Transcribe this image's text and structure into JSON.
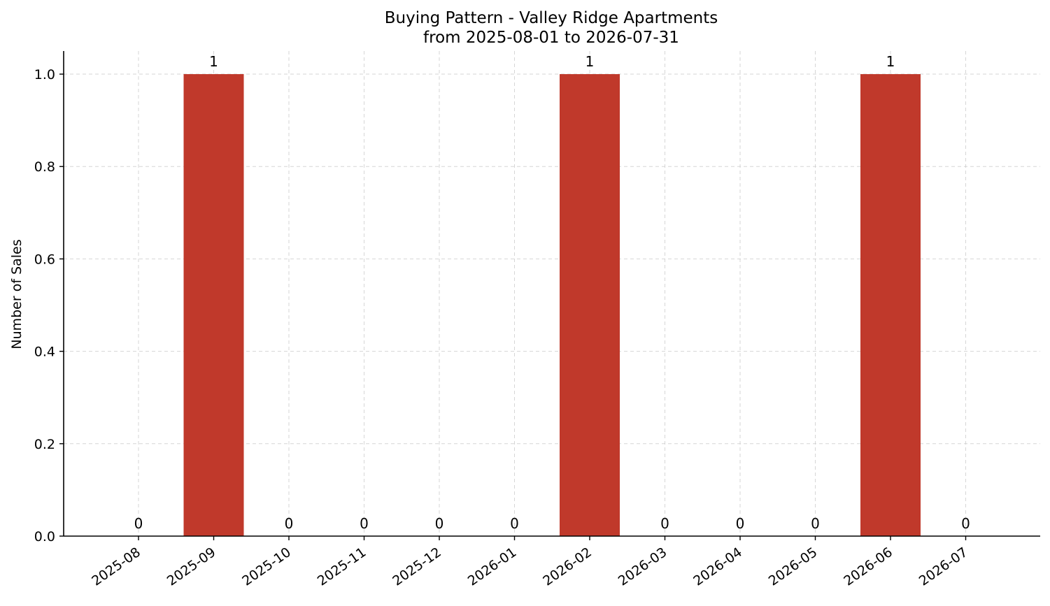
{
  "chart_data": {
    "type": "bar",
    "title": "Buying Pattern - Valley Ridge Apartments",
    "subtitle": "from 2025-08-01 to 2026-07-31",
    "xlabel": "",
    "ylabel": "Number of Sales",
    "categories": [
      "2025-08",
      "2025-09",
      "2025-10",
      "2025-11",
      "2025-12",
      "2026-01",
      "2026-02",
      "2026-03",
      "2026-04",
      "2026-05",
      "2026-06",
      "2026-07"
    ],
    "values": [
      0,
      1,
      0,
      0,
      0,
      0,
      1,
      0,
      0,
      0,
      1,
      0
    ],
    "data_labels": [
      "0",
      "1",
      "0",
      "0",
      "0",
      "0",
      "1",
      "0",
      "0",
      "0",
      "1",
      "0"
    ],
    "ylim": [
      0,
      1.05
    ],
    "yticks": [
      0.0,
      0.2,
      0.4,
      0.6,
      0.8,
      1.0
    ],
    "ytick_labels": [
      "0.0",
      "0.2",
      "0.4",
      "0.6",
      "0.8",
      "1.0"
    ],
    "grid": true,
    "bar_color": "#c0392b"
  }
}
